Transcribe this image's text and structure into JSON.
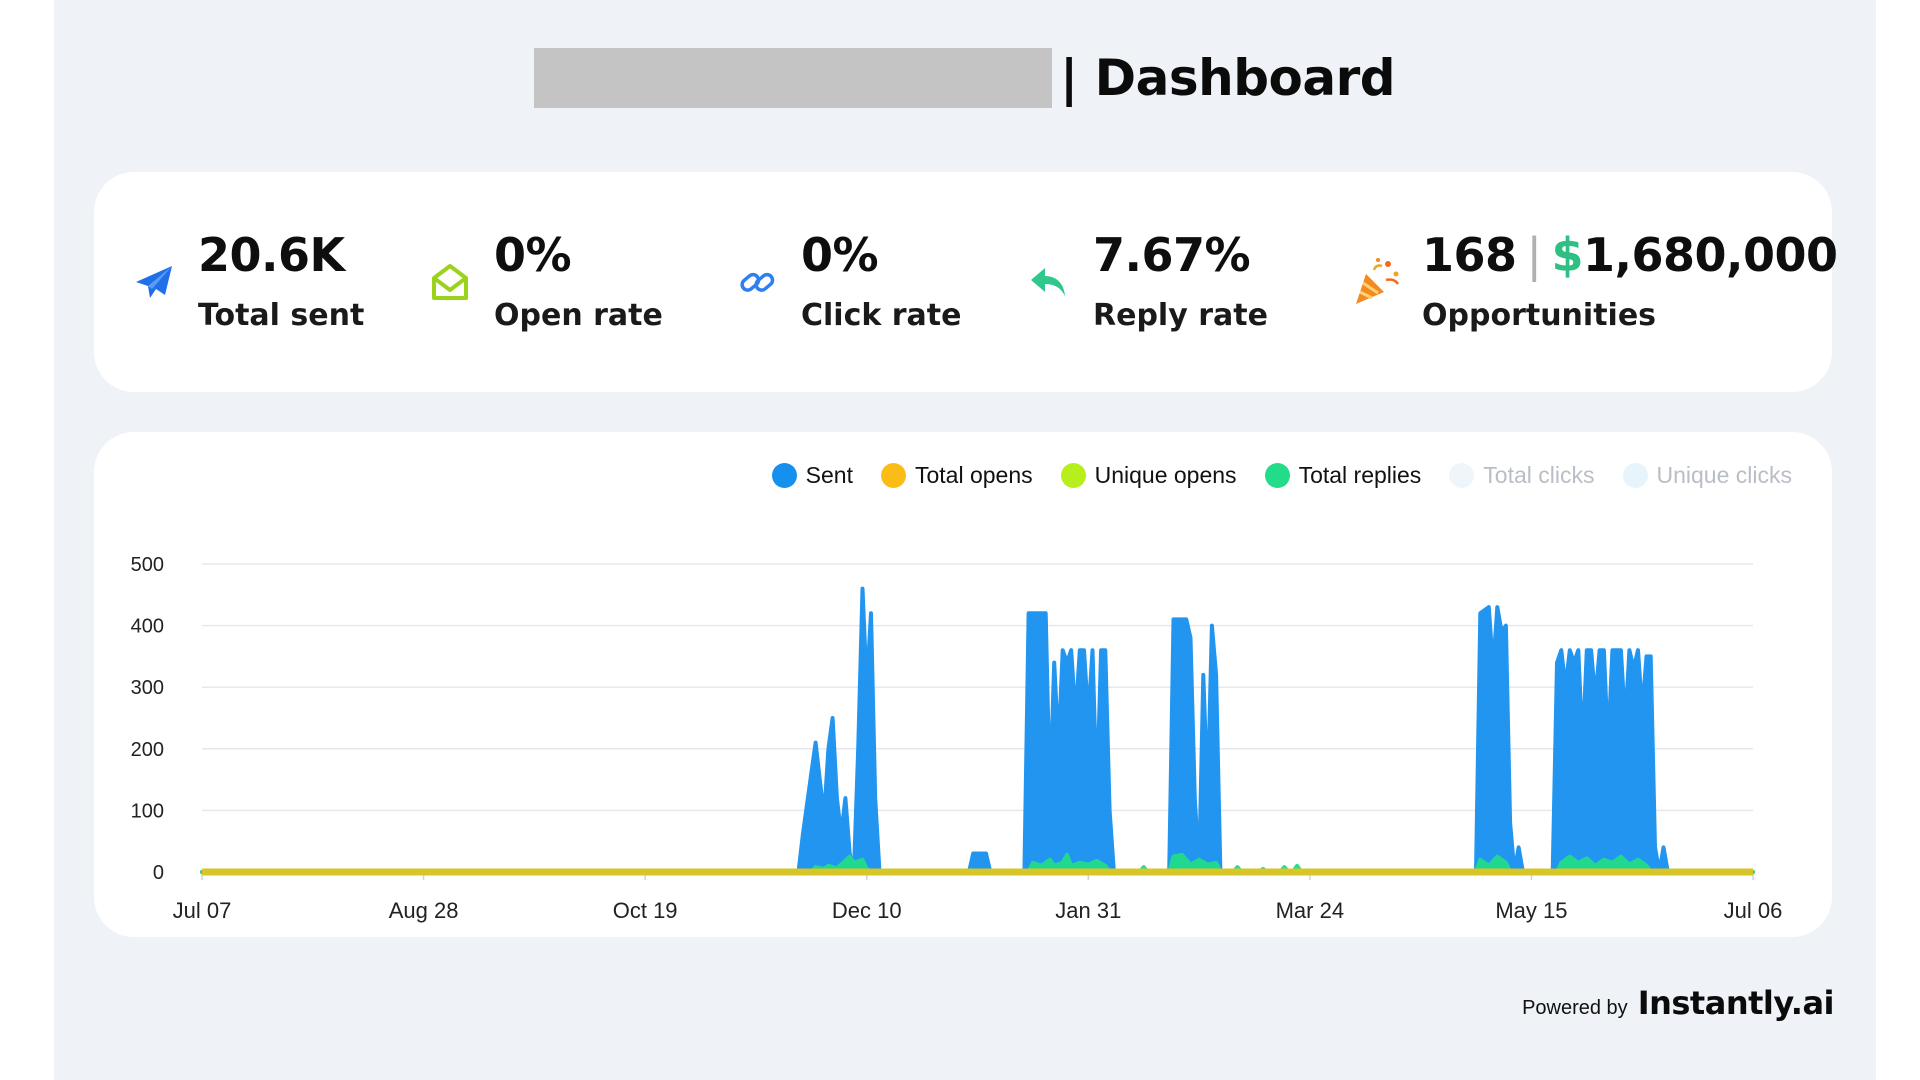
{
  "header": {
    "title_suffix": "| Dashboard"
  },
  "stats": [
    {
      "icon": "paper-plane-icon",
      "value": "20.6K",
      "label": "Total sent"
    },
    {
      "icon": "open-envelope-icon",
      "value": "0%",
      "label": "Open rate"
    },
    {
      "icon": "link-icon",
      "value": "0%",
      "label": "Click rate"
    },
    {
      "icon": "reply-arrow-icon",
      "value": "7.67%",
      "label": "Reply rate"
    },
    {
      "icon": "party-popper-icon",
      "count": "168",
      "separator": "|",
      "currency": "$",
      "amount": "1,680,000",
      "label": "Opportunities"
    }
  ],
  "colors": {
    "sent": "#1690ef",
    "total_opens": "#fbbc15",
    "unique_opens": "#b6ef1b",
    "total_replies": "#22dc8a",
    "total_clicks": "#eef5fb",
    "unique_clicks": "#e8f4fb",
    "baseline": "#d8c527",
    "money": "#2fbf84"
  },
  "chart_data": {
    "type": "area",
    "legend": [
      {
        "name": "Sent",
        "color": "#1690ef",
        "active": true
      },
      {
        "name": "Total opens",
        "color": "#fbbc15",
        "active": true
      },
      {
        "name": "Unique opens",
        "color": "#b6ef1b",
        "active": true
      },
      {
        "name": "Total replies",
        "color": "#22dc8a",
        "active": true
      },
      {
        "name": "Total clicks",
        "color": "#eef5fb",
        "active": false
      },
      {
        "name": "Unique clicks",
        "color": "#e8f4fb",
        "active": false
      }
    ],
    "legend_position": "top-right",
    "x_ticks": [
      "Jul 07",
      "Aug 28",
      "Oct 19",
      "Dec 10",
      "Jan 31",
      "Mar 24",
      "May 15",
      "Jul 06"
    ],
    "y_ticks": [
      0,
      100,
      200,
      300,
      400,
      500
    ],
    "xlim": [
      0,
      364
    ],
    "ylim": [
      0,
      500
    ],
    "grid": true,
    "series": [
      {
        "name": "Sent",
        "points": [
          [
            0,
            0
          ],
          [
            140,
            0
          ],
          [
            141,
            60
          ],
          [
            143,
            160
          ],
          [
            144,
            210
          ],
          [
            145,
            150
          ],
          [
            146,
            90
          ],
          [
            147,
            200
          ],
          [
            148,
            250
          ],
          [
            149,
            120
          ],
          [
            150,
            60
          ],
          [
            151,
            120
          ],
          [
            152,
            30
          ],
          [
            153,
            0
          ],
          [
            154,
            200
          ],
          [
            155,
            460
          ],
          [
            156,
            300
          ],
          [
            157,
            420
          ],
          [
            158,
            120
          ],
          [
            159,
            0
          ],
          [
            180,
            0
          ],
          [
            181,
            30
          ],
          [
            184,
            30
          ],
          [
            185,
            0
          ],
          [
            193,
            0
          ],
          [
            194,
            420
          ],
          [
            198,
            420
          ],
          [
            199,
            120
          ],
          [
            200,
            340
          ],
          [
            201,
            200
          ],
          [
            202,
            360
          ],
          [
            203,
            340
          ],
          [
            204,
            360
          ],
          [
            205,
            250
          ],
          [
            206,
            360
          ],
          [
            207,
            360
          ],
          [
            208,
            250
          ],
          [
            209,
            360
          ],
          [
            210,
            120
          ],
          [
            211,
            360
          ],
          [
            212,
            360
          ],
          [
            213,
            100
          ],
          [
            214,
            0
          ],
          [
            227,
            0
          ],
          [
            228,
            410
          ],
          [
            231,
            410
          ],
          [
            232,
            380
          ],
          [
            233,
            120
          ],
          [
            234,
            0
          ],
          [
            235,
            320
          ],
          [
            236,
            120
          ],
          [
            237,
            400
          ],
          [
            238,
            320
          ],
          [
            239,
            0
          ],
          [
            299,
            0
          ],
          [
            300,
            420
          ],
          [
            302,
            430
          ],
          [
            303,
            330
          ],
          [
            304,
            430
          ],
          [
            305,
            390
          ],
          [
            306,
            400
          ],
          [
            307,
            80
          ],
          [
            308,
            0
          ],
          [
            309,
            40
          ],
          [
            310,
            0
          ],
          [
            317,
            0
          ],
          [
            318,
            340
          ],
          [
            319,
            360
          ],
          [
            320,
            300
          ],
          [
            321,
            360
          ],
          [
            322,
            340
          ],
          [
            323,
            360
          ],
          [
            324,
            200
          ],
          [
            325,
            360
          ],
          [
            326,
            360
          ],
          [
            327,
            280
          ],
          [
            328,
            360
          ],
          [
            329,
            360
          ],
          [
            330,
            200
          ],
          [
            331,
            360
          ],
          [
            332,
            360
          ],
          [
            333,
            360
          ],
          [
            334,
            240
          ],
          [
            335,
            360
          ],
          [
            336,
            330
          ],
          [
            337,
            360
          ],
          [
            338,
            260
          ],
          [
            339,
            350
          ],
          [
            340,
            350
          ],
          [
            341,
            40
          ],
          [
            342,
            0
          ],
          [
            343,
            40
          ],
          [
            344,
            0
          ],
          [
            364,
            0
          ]
        ]
      },
      {
        "name": "Total replies",
        "points": [
          [
            0,
            0
          ],
          [
            143,
            0
          ],
          [
            144,
            8
          ],
          [
            146,
            5
          ],
          [
            147,
            10
          ],
          [
            149,
            6
          ],
          [
            150,
            12
          ],
          [
            152,
            25
          ],
          [
            153,
            15
          ],
          [
            155,
            20
          ],
          [
            156,
            5
          ],
          [
            157,
            0
          ],
          [
            194,
            0
          ],
          [
            195,
            15
          ],
          [
            197,
            10
          ],
          [
            199,
            20
          ],
          [
            200,
            10
          ],
          [
            202,
            15
          ],
          [
            203,
            28
          ],
          [
            204,
            10
          ],
          [
            206,
            15
          ],
          [
            208,
            12
          ],
          [
            210,
            18
          ],
          [
            212,
            10
          ],
          [
            213,
            0
          ],
          [
            220,
            0
          ],
          [
            221,
            8
          ],
          [
            222,
            0
          ],
          [
            227,
            0
          ],
          [
            228,
            25
          ],
          [
            230,
            28
          ],
          [
            232,
            12
          ],
          [
            234,
            20
          ],
          [
            236,
            12
          ],
          [
            238,
            15
          ],
          [
            239,
            0
          ],
          [
            242,
            0
          ],
          [
            243,
            8
          ],
          [
            244,
            0
          ],
          [
            248,
            0
          ],
          [
            249,
            5
          ],
          [
            250,
            0
          ],
          [
            253,
            0
          ],
          [
            254,
            8
          ],
          [
            255,
            0
          ],
          [
            256,
            0
          ],
          [
            257,
            10
          ],
          [
            258,
            0
          ],
          [
            299,
            0
          ],
          [
            300,
            20
          ],
          [
            302,
            10
          ],
          [
            304,
            25
          ],
          [
            306,
            15
          ],
          [
            307,
            0
          ],
          [
            318,
            0
          ],
          [
            319,
            15
          ],
          [
            321,
            25
          ],
          [
            323,
            15
          ],
          [
            325,
            22
          ],
          [
            327,
            10
          ],
          [
            329,
            20
          ],
          [
            331,
            15
          ],
          [
            333,
            25
          ],
          [
            335,
            12
          ],
          [
            337,
            20
          ],
          [
            339,
            10
          ],
          [
            340,
            0
          ],
          [
            364,
            0
          ]
        ]
      },
      {
        "name": "Total opens",
        "points": [
          [
            0,
            0
          ],
          [
            364,
            0
          ]
        ]
      },
      {
        "name": "Unique opens",
        "points": [
          [
            0,
            0
          ],
          [
            364,
            0
          ]
        ]
      }
    ]
  },
  "footer": {
    "powered_by": "Powered by",
    "brand": "Instantly.ai"
  }
}
